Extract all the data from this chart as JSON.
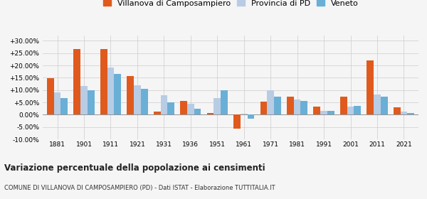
{
  "years": [
    1881,
    1901,
    1911,
    1921,
    1931,
    1936,
    1951,
    1961,
    1971,
    1981,
    1991,
    2001,
    2011,
    2021
  ],
  "villanova": [
    14.8,
    26.5,
    26.6,
    15.7,
    1.2,
    5.7,
    0.7,
    -5.8,
    5.4,
    7.3,
    3.2,
    7.3,
    22.0,
    3.0
  ],
  "provincia": [
    9.0,
    11.6,
    19.0,
    11.8,
    7.8,
    4.5,
    6.7,
    0.5,
    9.8,
    6.1,
    1.5,
    3.4,
    8.3,
    1.2
  ],
  "veneto": [
    6.8,
    10.0,
    16.5,
    10.5,
    5.1,
    2.4,
    9.9,
    -1.7,
    7.2,
    5.7,
    1.5,
    3.5,
    7.2,
    0.7
  ],
  "color_villanova": "#e05a1e",
  "color_provincia": "#b8cce4",
  "color_veneto": "#6aafd6",
  "title": "Variazione percentuale della popolazione ai censimenti",
  "subtitle": "COMUNE DI VILLANOVA DI CAMPOSAMPIERO (PD) - Dati ISTAT - Elaborazione TUTTITALIA.IT",
  "legend_labels": [
    "Villanova di Camposampiero",
    "Provincia di PD",
    "Veneto"
  ],
  "ylim": [
    -10.0,
    32.0
  ],
  "yticks": [
    -10.0,
    -5.0,
    0.0,
    5.0,
    10.0,
    15.0,
    20.0,
    25.0,
    30.0
  ],
  "background_color": "#f5f5f5",
  "grid_color": "#cccccc"
}
